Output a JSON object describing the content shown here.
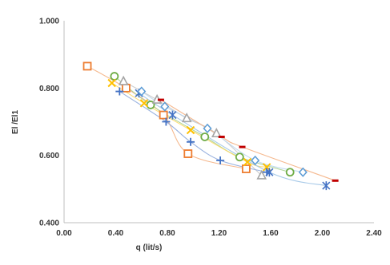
{
  "chart_data": {
    "type": "scatter",
    "title": "",
    "xlabel": "q (lit/s)",
    "ylabel": "El /El1",
    "xlim": [
      0.0,
      2.4
    ],
    "ylim": [
      0.4,
      1.0
    ],
    "x_ticks": [
      "0.00",
      "0.40",
      "0.80",
      "1.20",
      "1.60",
      "2.00",
      "2.40"
    ],
    "y_ticks": [
      "0.400",
      "0.600",
      "0.800",
      "1.000"
    ],
    "grid": false,
    "legend": "none",
    "series": [
      {
        "marker": "square",
        "color": "#ED7D31",
        "line_color": "#F4B183",
        "points": [
          [
            0.18,
            0.865
          ],
          [
            0.48,
            0.8
          ],
          [
            0.77,
            0.72
          ],
          [
            0.96,
            0.605
          ],
          [
            1.41,
            0.56
          ]
        ]
      },
      {
        "marker": "circle",
        "color": "#70AD47",
        "line_color": "#A9D18E",
        "points": [
          [
            0.39,
            0.835
          ],
          [
            0.67,
            0.75
          ],
          [
            1.09,
            0.655
          ],
          [
            1.36,
            0.595
          ],
          [
            1.75,
            0.55
          ]
        ]
      },
      {
        "marker": "triangle",
        "color": "#A5A5A5",
        "line_color": "#C9C9C9",
        "points": [
          [
            0.46,
            0.82
          ],
          [
            0.72,
            0.765
          ],
          [
            0.95,
            0.71
          ],
          [
            1.18,
            0.665
          ],
          [
            1.53,
            0.54
          ]
        ]
      },
      {
        "marker": "x",
        "color": "#FFC000",
        "line_color": "#FFD966",
        "points": [
          [
            0.37,
            0.815
          ],
          [
            0.62,
            0.755
          ],
          [
            0.98,
            0.675
          ],
          [
            1.42,
            0.58
          ],
          [
            1.57,
            0.565
          ]
        ]
      },
      {
        "marker": "plus",
        "color": "#4472C4",
        "line_color": "#8FAADC",
        "points": [
          [
            0.43,
            0.79
          ],
          [
            0.79,
            0.7
          ],
          [
            0.98,
            0.64
          ],
          [
            1.21,
            0.585
          ],
          [
            1.57,
            0.55
          ]
        ]
      },
      {
        "marker": "asterisk",
        "color": "#4472C4",
        "line_color": "#9DC3E6",
        "points": [
          [
            0.58,
            0.785
          ],
          [
            0.84,
            0.72
          ],
          [
            1.59,
            0.55
          ],
          [
            2.03,
            0.51
          ]
        ]
      },
      {
        "marker": "diamond",
        "color": "#5B9BD5",
        "line_color": "#BDD7EE",
        "points": [
          [
            0.6,
            0.79
          ],
          [
            0.78,
            0.745
          ],
          [
            1.11,
            0.68
          ],
          [
            1.48,
            0.585
          ],
          [
            1.85,
            0.55
          ]
        ]
      },
      {
        "marker": "dash",
        "color": "#C00000",
        "line_color": "#F4B183",
        "points": [
          [
            0.75,
            0.765
          ],
          [
            1.22,
            0.655
          ],
          [
            1.38,
            0.625
          ],
          [
            2.1,
            0.525
          ]
        ]
      }
    ]
  }
}
